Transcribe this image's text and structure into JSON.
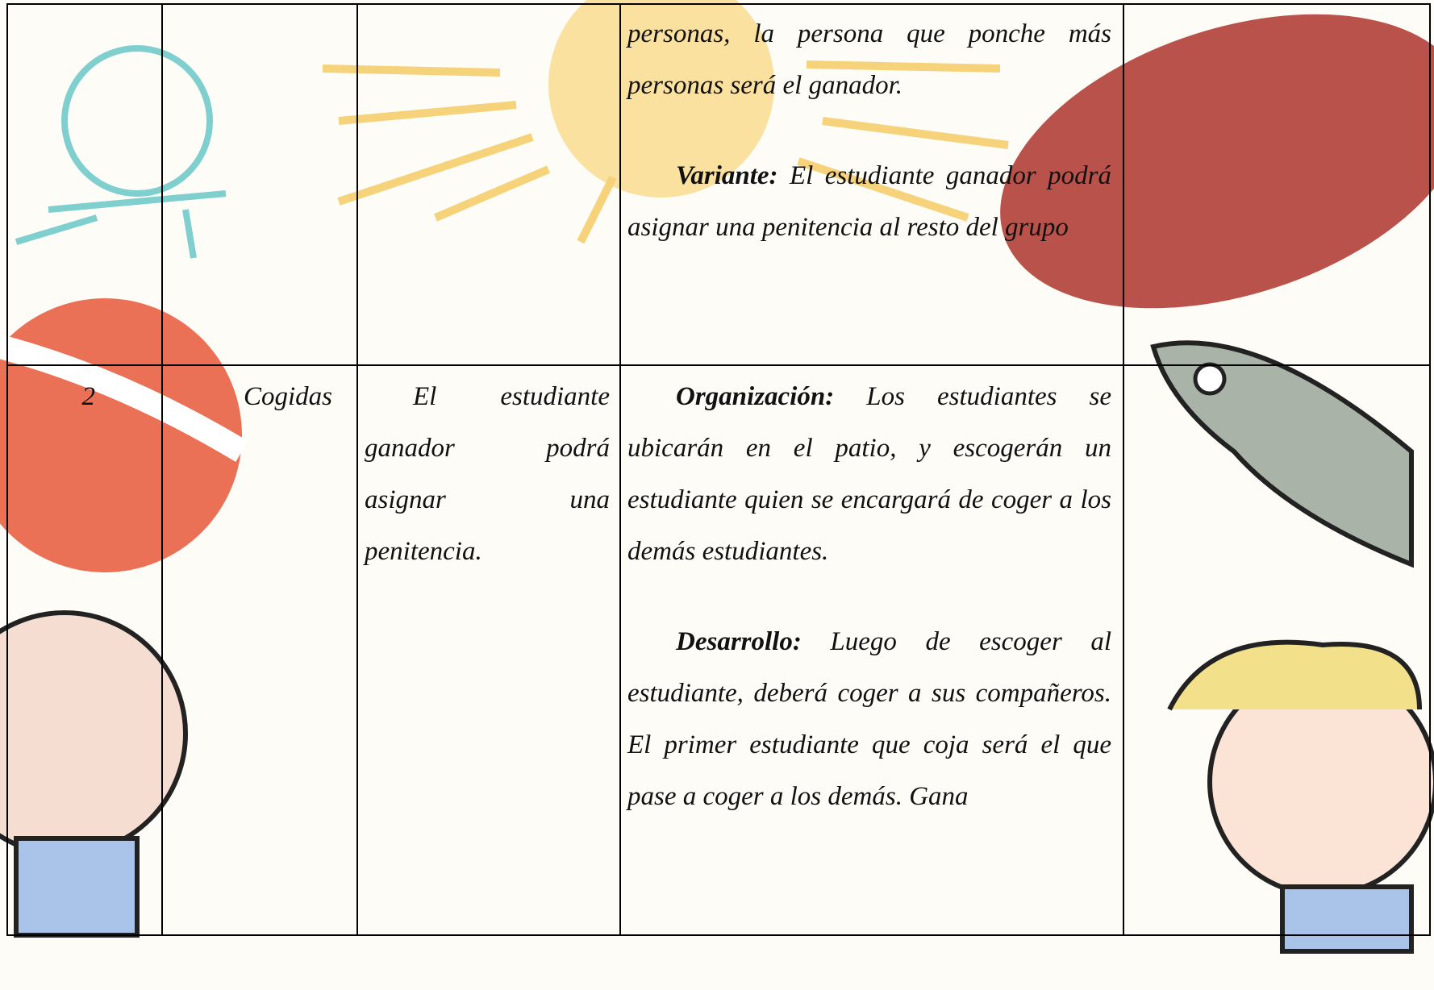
{
  "table": {
    "rows": [
      {
        "activity_paragraphs": [
          {
            "text": "personas, la persona que ponche más personas será el ganador."
          },
          {
            "label": "Variante:",
            "text": "El estudiante ganador podrá asignar una penitencia al resto del grupo"
          }
        ]
      },
      {
        "number": "2",
        "name": "Cogidas",
        "objective": "El estudiante ganador podrá asignar una penitencia.",
        "activity_paragraphs": [
          {
            "label": "Organización:",
            "text": "Los estudiantes se ubicarán en el patio, y escogerán un estudiante quien se encargará de coger a los demás estudiantes."
          },
          {
            "label": "Desarrollo:",
            "text": "Luego de escoger al estudiante, deberá coger a sus compañeros. El primer estudiante que coja será el que pase a coger a los demás. Gana"
          }
        ]
      }
    ]
  }
}
